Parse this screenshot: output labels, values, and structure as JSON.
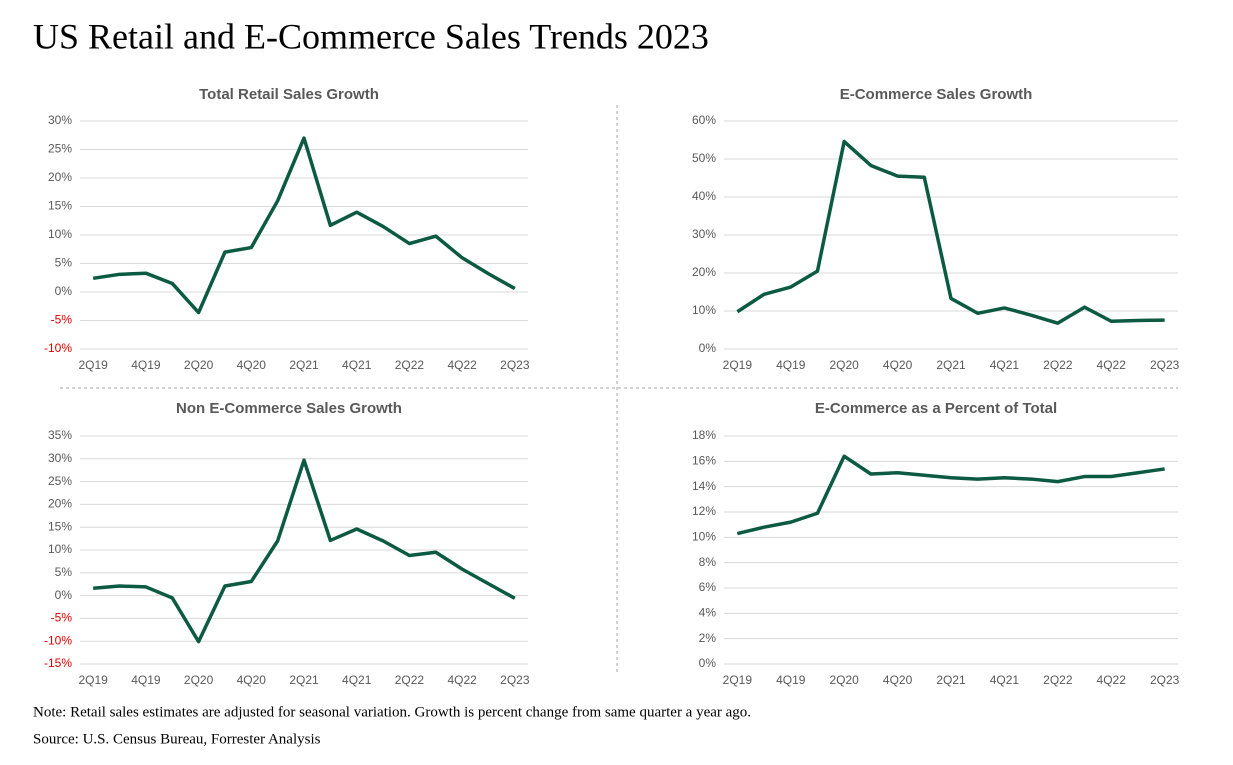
{
  "title": "US Retail and E-Commerce Sales Trends 2023",
  "note": "Note: Retail sales estimates are adjusted for seasonal variation. Growth is percent change from same quarter a year ago.",
  "source": "Source: U.S. Census Bureau, Forrester Analysis",
  "chart_data": [
    {
      "type": "line",
      "title": "Total Retail Sales Growth",
      "categories": [
        "2Q19",
        null,
        "4Q19",
        null,
        "2Q20",
        null,
        "4Q20",
        null,
        "2Q21",
        null,
        "4Q21",
        null,
        "2Q22",
        null,
        "4Q22",
        null,
        "2Q23"
      ],
      "values": [
        2.4,
        3.1,
        3.3,
        1.5,
        -3.6,
        7.0,
        7.8,
        16,
        27,
        11.7,
        14,
        11.5,
        8.5,
        9.8,
        6.0,
        3.2,
        0.6
      ],
      "color": "#0b5a41",
      "grid": true,
      "negative_tick_color": "#e00000",
      "ylim": [
        -10,
        30
      ],
      "yticks": [
        {
          "value": -10,
          "label": "-10%"
        },
        {
          "value": -5,
          "label": "-5%"
        },
        {
          "value": 0,
          "label": "0%"
        },
        {
          "value": 5,
          "label": "5%"
        },
        {
          "value": 10,
          "label": "10%"
        },
        {
          "value": 15,
          "label": "15%"
        },
        {
          "value": 20,
          "label": "20%"
        },
        {
          "value": 25,
          "label": "25%"
        },
        {
          "value": 30,
          "label": "30%"
        }
      ]
    },
    {
      "type": "line",
      "title": "E-Commerce Sales Growth",
      "categories": [
        "2Q19",
        null,
        "4Q19",
        null,
        "2Q20",
        null,
        "4Q20",
        null,
        "2Q21",
        null,
        "4Q21",
        null,
        "2Q22",
        null,
        "4Q22",
        null,
        "2Q23"
      ],
      "values": [
        9.8,
        14.4,
        16.3,
        20.5,
        54.6,
        48.3,
        45.5,
        45.2,
        13.3,
        9.4,
        10.8,
        8.9,
        6.8,
        11.0,
        7.3,
        7.5,
        7.6
      ],
      "color": "#0b5a41",
      "grid": true,
      "negative_tick_color": "#e00000",
      "ylim": [
        0,
        60
      ],
      "yticks": [
        {
          "value": 0,
          "label": "0%"
        },
        {
          "value": 10,
          "label": "10%"
        },
        {
          "value": 20,
          "label": "20%"
        },
        {
          "value": 30,
          "label": "30%"
        },
        {
          "value": 40,
          "label": "40%"
        },
        {
          "value": 50,
          "label": "50%"
        },
        {
          "value": 60,
          "label": "60%"
        }
      ]
    },
    {
      "type": "line",
      "title": "Non E-Commerce Sales Growth",
      "categories": [
        "2Q19",
        null,
        "4Q19",
        null,
        "2Q20",
        null,
        "4Q20",
        null,
        "2Q21",
        null,
        "4Q21",
        null,
        "2Q22",
        null,
        "4Q22",
        null,
        "2Q23"
      ],
      "values": [
        1.6,
        2.1,
        1.9,
        -0.5,
        -10.1,
        2.1,
        3.1,
        12,
        29.7,
        12.1,
        14.6,
        12.0,
        8.8,
        9.5,
        5.8,
        2.6,
        -0.6
      ],
      "color": "#0b5a41",
      "grid": true,
      "negative_tick_color": "#e00000",
      "ylim": [
        -15,
        35
      ],
      "yticks": [
        {
          "value": -15,
          "label": "-15%"
        },
        {
          "value": -10,
          "label": "-10%"
        },
        {
          "value": -5,
          "label": "-5%"
        },
        {
          "value": 0,
          "label": "0%"
        },
        {
          "value": 5,
          "label": "5%"
        },
        {
          "value": 10,
          "label": "10%"
        },
        {
          "value": 15,
          "label": "15%"
        },
        {
          "value": 20,
          "label": "20%"
        },
        {
          "value": 25,
          "label": "25%"
        },
        {
          "value": 30,
          "label": "30%"
        },
        {
          "value": 35,
          "label": "35%"
        }
      ]
    },
    {
      "type": "line",
      "title": "E-Commerce as a Percent of Total",
      "categories": [
        "2Q19",
        null,
        "4Q19",
        null,
        "2Q20",
        null,
        "4Q20",
        null,
        "2Q21",
        null,
        "4Q21",
        null,
        "2Q22",
        null,
        "4Q22",
        null,
        "2Q23"
      ],
      "values": [
        10.3,
        10.8,
        11.2,
        11.9,
        16.4,
        15.0,
        15.1,
        14.9,
        14.7,
        14.6,
        14.7,
        14.6,
        14.4,
        14.8,
        14.8,
        15.1,
        15.4
      ],
      "color": "#0b5a41",
      "grid": true,
      "negative_tick_color": "#e00000",
      "ylim": [
        0,
        18
      ],
      "yticks": [
        {
          "value": 0,
          "label": "0%"
        },
        {
          "value": 2,
          "label": "2%"
        },
        {
          "value": 4,
          "label": "4%"
        },
        {
          "value": 6,
          "label": "6%"
        },
        {
          "value": 8,
          "label": "8%"
        },
        {
          "value": 10,
          "label": "10%"
        },
        {
          "value": 12,
          "label": "12%"
        },
        {
          "value": 14,
          "label": "14%"
        },
        {
          "value": 16,
          "label": "16%"
        },
        {
          "value": 18,
          "label": "18%"
        }
      ]
    }
  ]
}
